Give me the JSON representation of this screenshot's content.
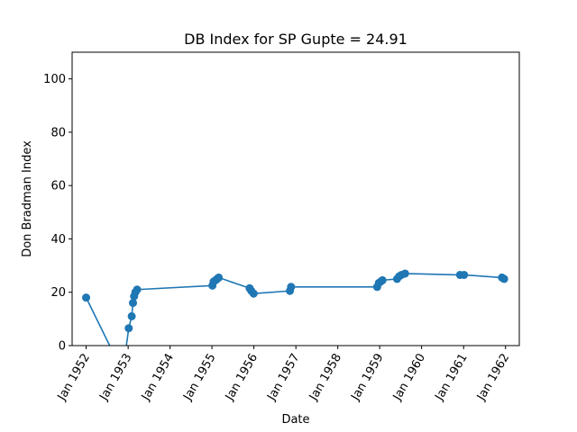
{
  "chart_data": {
    "type": "line",
    "title": "DB Index for SP Gupte = 24.91",
    "xlabel": "Date",
    "ylabel": "Don Bradman Index",
    "xlim": [
      "1951-09-01",
      "1962-05-01"
    ],
    "ylim": [
      0,
      110
    ],
    "x_ticks": [
      {
        "date": "1952-01-01",
        "label": "Jan 1952"
      },
      {
        "date": "1953-01-01",
        "label": "Jan 1953"
      },
      {
        "date": "1954-01-01",
        "label": "Jan 1954"
      },
      {
        "date": "1955-01-01",
        "label": "Jan 1955"
      },
      {
        "date": "1956-01-01",
        "label": "Jan 1956"
      },
      {
        "date": "1957-01-01",
        "label": "Jan 1957"
      },
      {
        "date": "1958-01-01",
        "label": "Jan 1958"
      },
      {
        "date": "1959-01-01",
        "label": "Jan 1959"
      },
      {
        "date": "1960-01-01",
        "label": "Jan 1960"
      },
      {
        "date": "1961-01-01",
        "label": "Jan 1961"
      },
      {
        "date": "1962-01-01",
        "label": "Jan 1962"
      }
    ],
    "y_ticks": [
      0,
      20,
      40,
      60,
      80,
      100
    ],
    "grid": false,
    "legend": false,
    "series": [
      {
        "color": "#1f77b4",
        "points": [
          {
            "x": "1952-01-01",
            "y": 18.0
          },
          {
            "x": "1952-11-15",
            "y": -10.0
          },
          {
            "x": "1953-01-06",
            "y": 6.5
          },
          {
            "x": "1953-02-01",
            "y": 11.0
          },
          {
            "x": "1953-02-12",
            "y": 16.0
          },
          {
            "x": "1953-02-22",
            "y": 18.5
          },
          {
            "x": "1953-03-05",
            "y": 20.0
          },
          {
            "x": "1953-03-20",
            "y": 21.0
          },
          {
            "x": "1955-01-05",
            "y": 22.5
          },
          {
            "x": "1955-01-15",
            "y": 24.0
          },
          {
            "x": "1955-02-01",
            "y": 24.5
          },
          {
            "x": "1955-02-15",
            "y": 25.0
          },
          {
            "x": "1955-03-01",
            "y": 25.5
          },
          {
            "x": "1955-11-25",
            "y": 21.5
          },
          {
            "x": "1955-12-10",
            "y": 20.5
          },
          {
            "x": "1955-12-30",
            "y": 19.5
          },
          {
            "x": "1956-11-10",
            "y": 20.5
          },
          {
            "x": "1956-11-20",
            "y": 22.0
          },
          {
            "x": "1958-12-10",
            "y": 22.0
          },
          {
            "x": "1958-12-25",
            "y": 23.5
          },
          {
            "x": "1959-01-10",
            "y": 24.0
          },
          {
            "x": "1959-01-25",
            "y": 24.5
          },
          {
            "x": "1959-06-01",
            "y": 25.0
          },
          {
            "x": "1959-06-20",
            "y": 26.0
          },
          {
            "x": "1959-07-10",
            "y": 26.5
          },
          {
            "x": "1959-08-10",
            "y": 27.0
          },
          {
            "x": "1960-12-01",
            "y": 26.5
          },
          {
            "x": "1961-01-05",
            "y": 26.5
          },
          {
            "x": "1961-12-01",
            "y": 25.5
          },
          {
            "x": "1961-12-20",
            "y": 25.0
          }
        ]
      }
    ]
  }
}
